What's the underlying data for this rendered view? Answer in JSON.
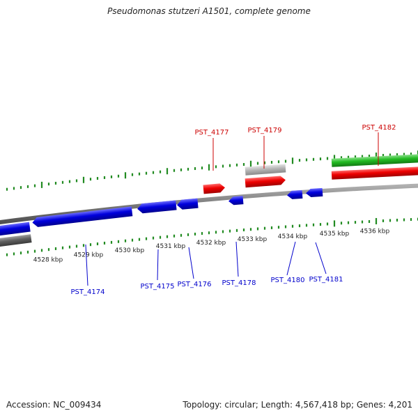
{
  "title": "Pseudomonas stutzeri A1501, complete genome",
  "footer": {
    "accession": "Accession: NC_009434",
    "summary": "Topology: circular; Length: 4,567,418 bp; Genes: 4,201"
  },
  "colors": {
    "backbone": "#7a7a7a",
    "tick": "#228b22",
    "forward_gene": "#ee0000",
    "reverse_gene": "#0000dd",
    "rna_gene": "#22bb22",
    "pseudo_gene": "#b5b5b5",
    "dark_gene": "#606060",
    "forward_label": "#cc0000",
    "reverse_label": "#0000cc",
    "scale_label": "#222222"
  },
  "scale": {
    "unit": "kbp",
    "major_ticks": [
      4528,
      4529,
      4530,
      4531,
      4532,
      4533,
      4534,
      4535,
      4536
    ]
  },
  "genes": [
    {
      "locus": "PST_4174",
      "strand": "reverse",
      "labeled": true
    },
    {
      "locus": "PST_4175",
      "strand": "reverse",
      "labeled": true
    },
    {
      "locus": "PST_4176",
      "strand": "reverse",
      "labeled": true
    },
    {
      "locus": "PST_4177",
      "strand": "forward",
      "labeled": true
    },
    {
      "locus": "PST_4178",
      "strand": "reverse",
      "labeled": true
    },
    {
      "locus": "PST_4179",
      "strand": "forward",
      "labeled": true
    },
    {
      "locus": "PST_4180",
      "strand": "reverse",
      "labeled": true
    },
    {
      "locus": "PST_4181",
      "strand": "reverse",
      "labeled": true
    },
    {
      "locus": "PST_4182",
      "strand": "forward",
      "labeled": true
    }
  ]
}
